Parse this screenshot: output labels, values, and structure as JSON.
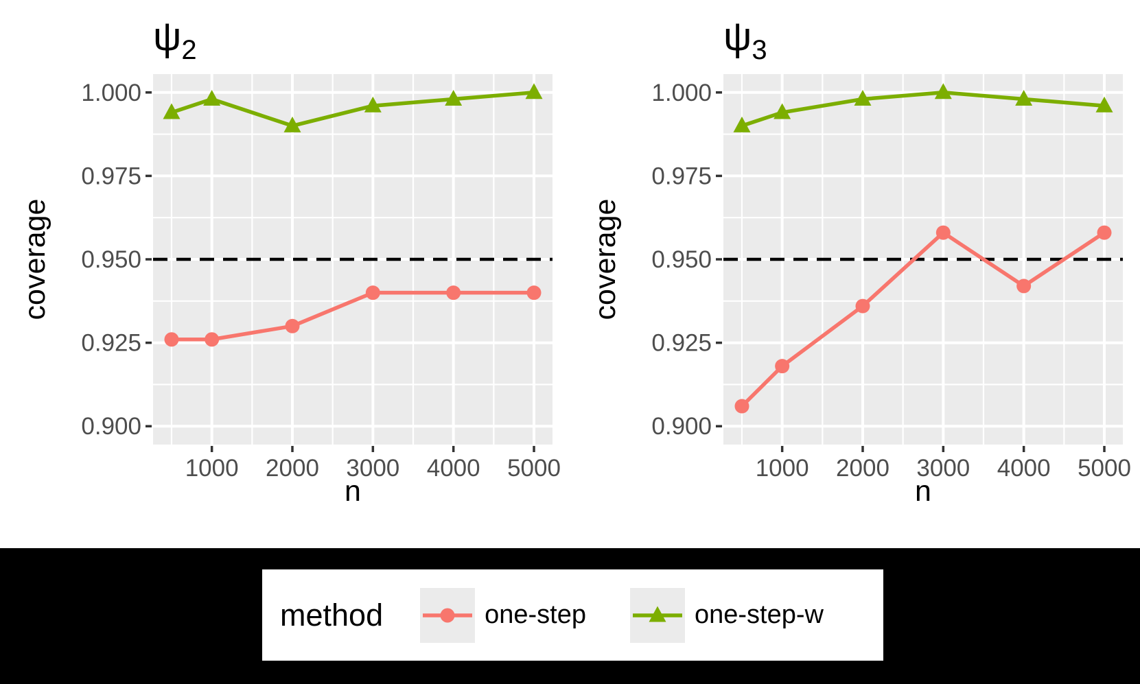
{
  "figure": {
    "background": "#FFFFFF",
    "footer_background": "#000000",
    "panel_background": "#EBEBEB",
    "gridline_color": "#FFFFFF",
    "tick_color": "#333333",
    "tick_label_color": "#4D4D4D",
    "axis_title_color": "#000000"
  },
  "legend": {
    "title": "method",
    "items": [
      {
        "label": "one-step",
        "color": "#F8766D",
        "marker": "circle"
      },
      {
        "label": "one-step-w",
        "color": "#7CAE00",
        "marker": "triangle-up"
      }
    ]
  },
  "chart_data": [
    {
      "type": "line",
      "title_symbol": "ψ",
      "title_subscript": "2",
      "xlabel": "n",
      "ylabel": "coverage",
      "x": [
        500,
        1000,
        2000,
        3000,
        4000,
        5000
      ],
      "x_tick_values": [
        1000,
        2000,
        3000,
        4000,
        5000
      ],
      "x_tick_labels": [
        "1000",
        "2000",
        "3000",
        "4000",
        "5000"
      ],
      "x_minor_values": [
        500,
        1500,
        2500,
        3500,
        4500
      ],
      "y_tick_values": [
        1.0,
        0.975,
        0.95,
        0.925,
        0.9
      ],
      "y_tick_labels": [
        "1.000",
        "0.975",
        "0.950",
        "0.925",
        "0.900"
      ],
      "y_minor_values": [
        0.9875,
        0.9625,
        0.9375,
        0.9125
      ],
      "xlim": [
        270,
        5230
      ],
      "ylim": [
        0.8945,
        1.0055
      ],
      "grid": "major+minor white on grey",
      "legend_position": "bottom-outside",
      "reference_line": {
        "y": 0.95,
        "style": "dashed",
        "color": "#000000"
      },
      "series": [
        {
          "name": "one-step",
          "color": "#F8766D",
          "marker": "circle",
          "values": [
            0.926,
            0.926,
            0.93,
            0.94,
            0.94,
            0.94
          ]
        },
        {
          "name": "one-step-w",
          "color": "#7CAE00",
          "marker": "triangle-up",
          "values": [
            0.994,
            0.998,
            0.99,
            0.996,
            0.998,
            1.0
          ]
        }
      ]
    },
    {
      "type": "line",
      "title_symbol": "ψ",
      "title_subscript": "3",
      "xlabel": "n",
      "ylabel": "coverage",
      "x": [
        500,
        1000,
        2000,
        3000,
        4000,
        5000
      ],
      "x_tick_values": [
        1000,
        2000,
        3000,
        4000,
        5000
      ],
      "x_tick_labels": [
        "1000",
        "2000",
        "3000",
        "4000",
        "5000"
      ],
      "x_minor_values": [
        500,
        1500,
        2500,
        3500,
        4500
      ],
      "y_tick_values": [
        1.0,
        0.975,
        0.95,
        0.925,
        0.9
      ],
      "y_tick_labels": [
        "1.000",
        "0.975",
        "0.950",
        "0.925",
        "0.900"
      ],
      "y_minor_values": [
        0.9875,
        0.9625,
        0.9375,
        0.9125
      ],
      "xlim": [
        270,
        5230
      ],
      "ylim": [
        0.8945,
        1.0055
      ],
      "grid": "major+minor white on grey",
      "legend_position": "bottom-outside",
      "reference_line": {
        "y": 0.95,
        "style": "dashed",
        "color": "#000000"
      },
      "series": [
        {
          "name": "one-step",
          "color": "#F8766D",
          "marker": "circle",
          "values": [
            0.906,
            0.918,
            0.936,
            0.958,
            0.942,
            0.958
          ]
        },
        {
          "name": "one-step-w",
          "color": "#7CAE00",
          "marker": "triangle-up",
          "values": [
            0.99,
            0.994,
            0.998,
            1.0,
            0.998,
            0.996
          ]
        }
      ]
    }
  ]
}
